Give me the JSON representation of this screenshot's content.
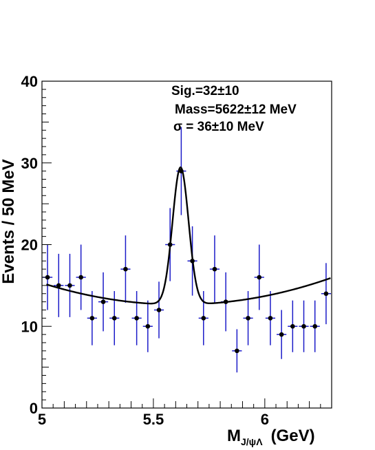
{
  "chart_data": {
    "type": "scatter",
    "xlabel_main": "M",
    "xlabel_sub": "J/ψΛ",
    "xlabel_unit": "(GeV)",
    "ylabel": "Events / 50  MeV",
    "xlim": [
      5.0,
      6.3
    ],
    "ylim": [
      0,
      40
    ],
    "x_ticks": [
      {
        "value": 5.0,
        "label": "5"
      },
      {
        "value": 5.5,
        "label": "5.5"
      },
      {
        "value": 6.0,
        "label": "6"
      }
    ],
    "y_ticks": [
      {
        "value": 0,
        "label": "0"
      },
      {
        "value": 10,
        "label": "10"
      },
      {
        "value": 20,
        "label": "20"
      },
      {
        "value": 30,
        "label": "30"
      },
      {
        "value": 40,
        "label": "40"
      }
    ],
    "bin_width": 0.05,
    "points": [
      {
        "x": 5.025,
        "y": 16
      },
      {
        "x": 5.075,
        "y": 15
      },
      {
        "x": 5.125,
        "y": 15
      },
      {
        "x": 5.175,
        "y": 16
      },
      {
        "x": 5.225,
        "y": 11
      },
      {
        "x": 5.275,
        "y": 13
      },
      {
        "x": 5.325,
        "y": 11
      },
      {
        "x": 5.375,
        "y": 17
      },
      {
        "x": 5.425,
        "y": 11
      },
      {
        "x": 5.475,
        "y": 10
      },
      {
        "x": 5.525,
        "y": 12
      },
      {
        "x": 5.575,
        "y": 20
      },
      {
        "x": 5.625,
        "y": 29
      },
      {
        "x": 5.675,
        "y": 18
      },
      {
        "x": 5.725,
        "y": 11
      },
      {
        "x": 5.775,
        "y": 17
      },
      {
        "x": 5.825,
        "y": 13
      },
      {
        "x": 5.875,
        "y": 7
      },
      {
        "x": 5.925,
        "y": 11
      },
      {
        "x": 5.975,
        "y": 16
      },
      {
        "x": 6.025,
        "y": 11
      },
      {
        "x": 6.075,
        "y": 9
      },
      {
        "x": 6.125,
        "y": 10
      },
      {
        "x": 6.175,
        "y": 10
      },
      {
        "x": 6.225,
        "y": 10
      },
      {
        "x": 6.275,
        "y": 14
      }
    ],
    "fit": {
      "background": {
        "a": 15.3,
        "b": -8.6,
        "c": 7.0,
        "x0": 5.0
      },
      "signal": {
        "amplitude": 16.8,
        "mean": 5.622,
        "sigma": 0.036
      }
    },
    "annotations": [
      "Sig.=32±10",
      "Mass=5622±12 MeV",
      "σ = 36±10 MeV"
    ],
    "colors": {
      "marker": "#000000",
      "error_bar": "#1a1ac8",
      "fit_line": "#000000",
      "axes": "#000000"
    }
  }
}
